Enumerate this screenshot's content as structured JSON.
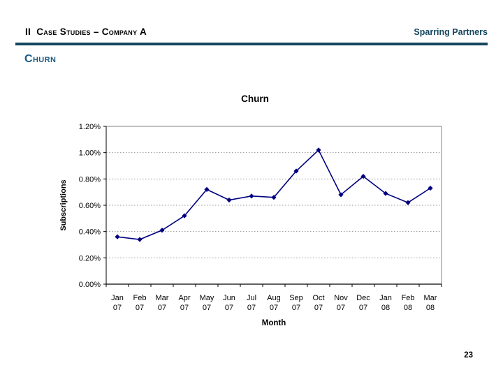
{
  "header": {
    "left_title": "II  Case Studies – Company A",
    "right_brand": "Sparring Partners"
  },
  "slide_title": "Churn",
  "page": {
    "number": "23"
  },
  "colors": {
    "header_rule": "#16465f",
    "brand_text": "#16465f",
    "section_title": "#1c5a7e",
    "series": "#000080",
    "gridline": "#969696",
    "plot_border": "#808080",
    "axis": "#000000"
  },
  "chart_data": {
    "type": "line",
    "title": "Churn",
    "xlabel": "Month",
    "ylabel": "Subscriptions",
    "categories": [
      "Jan 07",
      "Feb 07",
      "Mar 07",
      "Apr 07",
      "May 07",
      "Jun 07",
      "Jul 07",
      "Aug 07",
      "Sep 07",
      "Oct 07",
      "Nov 07",
      "Dec 07",
      "Jan 08",
      "Feb 08",
      "Mar 08"
    ],
    "values": [
      0.36,
      0.34,
      0.41,
      0.52,
      0.72,
      0.64,
      0.67,
      0.66,
      0.86,
      1.02,
      0.68,
      0.82,
      0.69,
      0.62,
      0.73
    ],
    "unit": "percent",
    "ylim": [
      0,
      1.2
    ],
    "ytick_labels": [
      "0.00%",
      "0.20%",
      "0.40%",
      "0.60%",
      "0.80%",
      "1.00%",
      "1.20%"
    ],
    "grid": "horizontal-dotted",
    "legend": "none",
    "marker": "diamond",
    "series_color": "#000080"
  }
}
